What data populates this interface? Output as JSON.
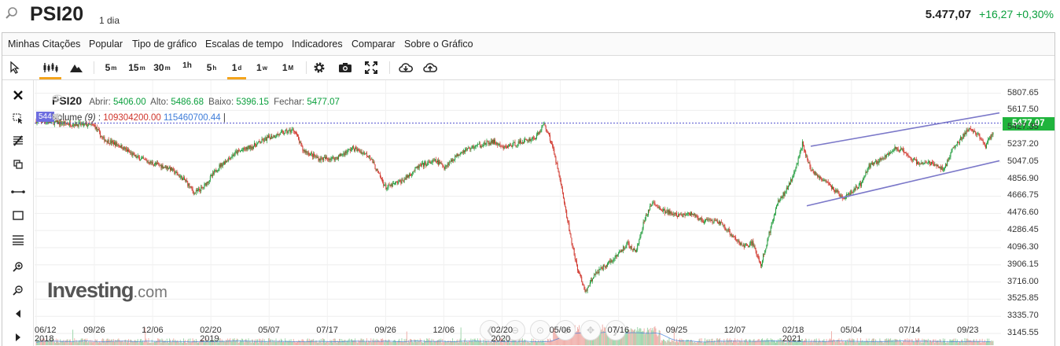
{
  "header": {
    "symbol": "PSI20",
    "interval": "1 dia",
    "last": "5.477,07",
    "change": "+16,27",
    "change_pct": "+0,30%"
  },
  "menu": [
    "Minhas Citações",
    "Popular",
    "Tipo de gráfico",
    "Escalas de tempo",
    "Indicadores",
    "Comparar",
    "Sobre o Gráfico"
  ],
  "toolbar": {
    "intervals": [
      {
        "n": "5",
        "u": "m"
      },
      {
        "n": "15",
        "u": "m"
      },
      {
        "n": "30",
        "u": "m"
      },
      {
        "n": "1h",
        "u": ""
      },
      {
        "n": "5",
        "u": "h"
      },
      {
        "n": "1",
        "u": "d"
      },
      {
        "n": "1",
        "u": "w"
      },
      {
        "n": "1",
        "u": "M"
      }
    ],
    "selected_interval": "1d"
  },
  "legend": {
    "name": "PSI20",
    "open_label": "Abrir:",
    "open": "5406.00",
    "high_label": "Alto:",
    "high": "5486.68",
    "low_label": "Baixo:",
    "low": "5396.15",
    "close_label": "Fechar:",
    "close": "5477.07",
    "left_tag": "544",
    "volume_label": "Volume",
    "volume_period": "(9)",
    "volume_value": "109304200.00",
    "volume_ma": "115460700.44"
  },
  "logo": {
    "brand": "Investing",
    "suffix": ".com"
  },
  "accent_colors": {
    "up": "#0a9f3c",
    "down": "#d0352b",
    "lines": "#7b78c9",
    "price_tag": "#20b43d",
    "selected": "#f4a41c"
  },
  "chart_data": {
    "type": "candlestick",
    "series_name": "PSI20",
    "y_ticks": [
      "5807.65",
      "5617.50",
      "5427.35",
      "5237.20",
      "5047.05",
      "4856.90",
      "4666.75",
      "4476.60",
      "4286.45",
      "4096.30",
      "3906.15",
      "3716.00",
      "3525.85",
      "3335.70",
      "3145.55"
    ],
    "ylim": [
      3050,
      5900
    ],
    "current_price": "5477.07",
    "x_ticks": [
      {
        "date": "06/12",
        "year": "2018"
      },
      {
        "date": "09/26",
        "year": ""
      },
      {
        "date": "12/06",
        "year": ""
      },
      {
        "date": "02/20",
        "year": "2019"
      },
      {
        "date": "05/07",
        "year": ""
      },
      {
        "date": "07/17",
        "year": ""
      },
      {
        "date": "09/26",
        "year": ""
      },
      {
        "date": "12/06",
        "year": ""
      },
      {
        "date": "02/20",
        "year": "2020"
      },
      {
        "date": "05/06",
        "year": ""
      },
      {
        "date": "07/16",
        "year": ""
      },
      {
        "date": "09/25",
        "year": ""
      },
      {
        "date": "12/07",
        "year": ""
      },
      {
        "date": "02/18",
        "year": "2021"
      },
      {
        "date": "05/04",
        "year": ""
      },
      {
        "date": "07/14",
        "year": ""
      },
      {
        "date": "09/23",
        "year": ""
      }
    ],
    "price_path": [
      [
        0,
        5500
      ],
      [
        4,
        5470
      ],
      [
        7,
        5450
      ],
      [
        8,
        5300
      ],
      [
        10,
        5230
      ],
      [
        12,
        5100
      ],
      [
        14,
        5030
      ],
      [
        16,
        4980
      ],
      [
        18,
        4830
      ],
      [
        19,
        4700
      ],
      [
        20,
        4760
      ],
      [
        22,
        5000
      ],
      [
        24,
        5150
      ],
      [
        26,
        5220
      ],
      [
        28,
        5320
      ],
      [
        30,
        5380
      ],
      [
        31,
        5400
      ],
      [
        32,
        5180
      ],
      [
        34,
        5080
      ],
      [
        36,
        5090
      ],
      [
        38,
        5200
      ],
      [
        40,
        5120
      ],
      [
        41,
        4930
      ],
      [
        42,
        4760
      ],
      [
        44,
        4840
      ],
      [
        46,
        5000
      ],
      [
        48,
        5060
      ],
      [
        49,
        4990
      ],
      [
        51,
        5160
      ],
      [
        53,
        5230
      ],
      [
        55,
        5270
      ],
      [
        56,
        5200
      ],
      [
        58,
        5260
      ],
      [
        60,
        5320
      ],
      [
        61,
        5470
      ],
      [
        62,
        5230
      ],
      [
        63,
        4800
      ],
      [
        64,
        4300
      ],
      [
        65,
        3850
      ],
      [
        66,
        3600
      ],
      [
        67,
        3800
      ],
      [
        69,
        3950
      ],
      [
        71,
        4140
      ],
      [
        72,
        4050
      ],
      [
        73,
        4400
      ],
      [
        74,
        4600
      ],
      [
        75,
        4520
      ],
      [
        77,
        4450
      ],
      [
        79,
        4470
      ],
      [
        80,
        4390
      ],
      [
        82,
        4380
      ],
      [
        84,
        4200
      ],
      [
        85,
        4100
      ],
      [
        86,
        4150
      ],
      [
        87,
        3900
      ],
      [
        88,
        4250
      ],
      [
        89,
        4600
      ],
      [
        90,
        4720
      ],
      [
        91,
        4920
      ],
      [
        92,
        5250
      ],
      [
        93,
        4960
      ],
      [
        95,
        4820
      ],
      [
        96,
        4720
      ],
      [
        97,
        4650
      ],
      [
        99,
        4800
      ],
      [
        100,
        5000
      ],
      [
        102,
        5100
      ],
      [
        103,
        5200
      ],
      [
        104,
        5170
      ],
      [
        106,
        5020
      ],
      [
        107,
        5050
      ],
      [
        109,
        4960
      ],
      [
        110,
        5180
      ],
      [
        112,
        5420
      ],
      [
        113,
        5350
      ],
      [
        114,
        5220
      ],
      [
        115,
        5400
      ]
    ],
    "channel_upper": [
      [
        1030,
        5220
      ],
      [
        1270,
        5590
      ]
    ],
    "channel_lower": [
      [
        1025,
        4560
      ],
      [
        1270,
        5060
      ]
    ]
  }
}
